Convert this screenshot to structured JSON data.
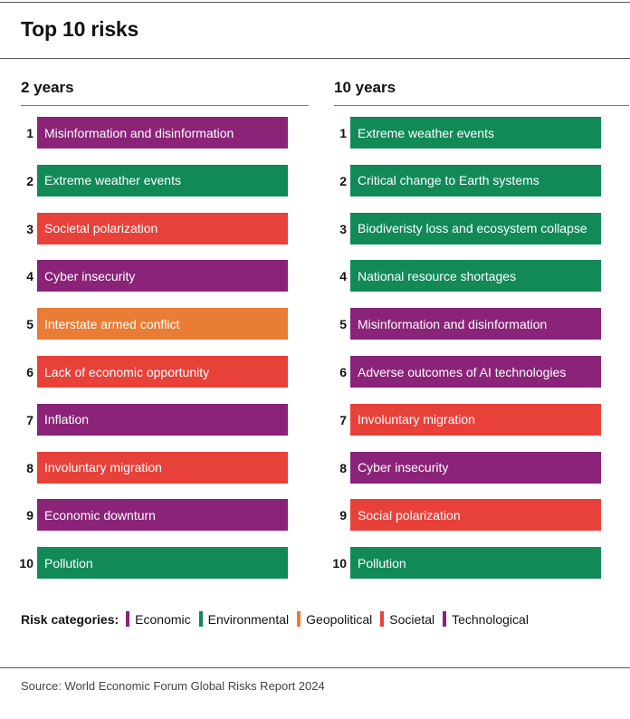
{
  "title": "Top 10 risks",
  "source": "Source: World Economic Forum Global Risks Report 2024",
  "colors": {
    "Economic": "#8b2378",
    "Environmental": "#128a58",
    "Geopolitical": "#ea7d35",
    "Societal": "#e8413a",
    "Technological": "#8b2378"
  },
  "legend": {
    "title": "Risk categories:",
    "items": [
      "Economic",
      "Environmental",
      "Geopolitical",
      "Societal",
      "Technological"
    ]
  },
  "chart_data": {
    "type": "table",
    "title": "Top 10 risks",
    "columns": [
      {
        "heading": "2 years",
        "rows": [
          {
            "rank": 1,
            "label": "Misinformation and disinformation",
            "category": "Technological"
          },
          {
            "rank": 2,
            "label": "Extreme weather events",
            "category": "Environmental"
          },
          {
            "rank": 3,
            "label": "Societal polarization",
            "category": "Societal"
          },
          {
            "rank": 4,
            "label": "Cyber insecurity",
            "category": "Technological"
          },
          {
            "rank": 5,
            "label": "Interstate armed conflict",
            "category": "Geopolitical"
          },
          {
            "rank": 6,
            "label": "Lack of economic opportunity",
            "category": "Societal"
          },
          {
            "rank": 7,
            "label": "Inflation",
            "category": "Economic"
          },
          {
            "rank": 8,
            "label": "Involuntary migration",
            "category": "Societal"
          },
          {
            "rank": 9,
            "label": "Economic downturn",
            "category": "Economic"
          },
          {
            "rank": 10,
            "label": "Pollution",
            "category": "Environmental"
          }
        ]
      },
      {
        "heading": "10 years",
        "rows": [
          {
            "rank": 1,
            "label": "Extreme weather events",
            "category": "Environmental"
          },
          {
            "rank": 2,
            "label": "Critical change to Earth systems",
            "category": "Environmental"
          },
          {
            "rank": 3,
            "label": "Biodiveristy loss and ecosystem collapse",
            "category": "Environmental"
          },
          {
            "rank": 4,
            "label": "National resource shortages",
            "category": "Environmental"
          },
          {
            "rank": 5,
            "label": "Misinformation and disinformation",
            "category": "Technological"
          },
          {
            "rank": 6,
            "label": "Adverse outcomes of AI technologies",
            "category": "Technological"
          },
          {
            "rank": 7,
            "label": "Involuntary migration",
            "category": "Societal"
          },
          {
            "rank": 8,
            "label": "Cyber insecurity",
            "category": "Technological"
          },
          {
            "rank": 9,
            "label": "Social polarization",
            "category": "Societal"
          },
          {
            "rank": 10,
            "label": "Pollution",
            "category": "Environmental"
          }
        ]
      }
    ]
  }
}
